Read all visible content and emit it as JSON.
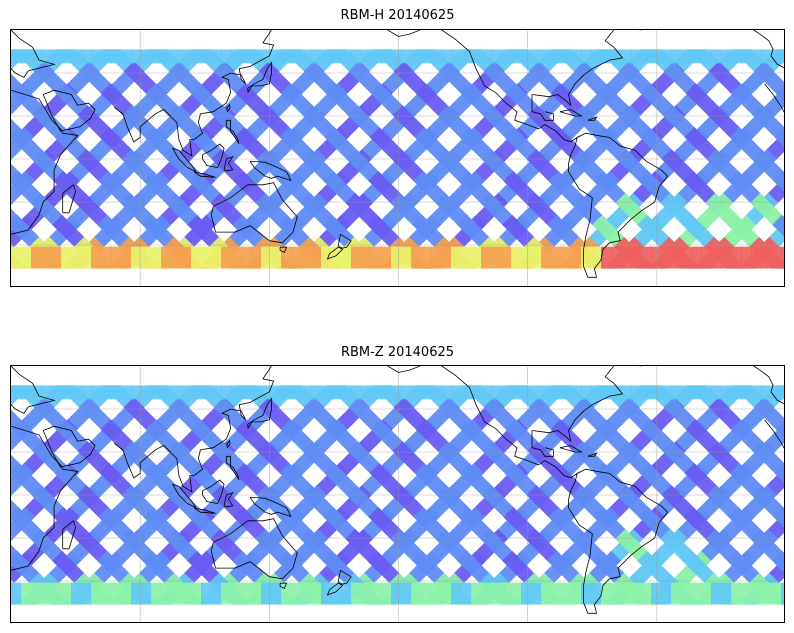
{
  "panels": [
    {
      "id": "rbm-h",
      "title": "RBM-H 20140625",
      "south_hot": true
    },
    {
      "id": "rbm-z",
      "title": "RBM-Z 20140625",
      "south_hot": false
    }
  ],
  "map": {
    "lon_range": [
      20,
      380
    ],
    "lat_range": [
      -60,
      60
    ],
    "swath_lat_range": [
      -51,
      51
    ],
    "gridlines": true,
    "colormap": [
      "#6a5cf2",
      "#5f8cf5",
      "#63c8f5",
      "#8cf2a8",
      "#e8f26a",
      "#f5a050",
      "#ef6060"
    ]
  }
}
